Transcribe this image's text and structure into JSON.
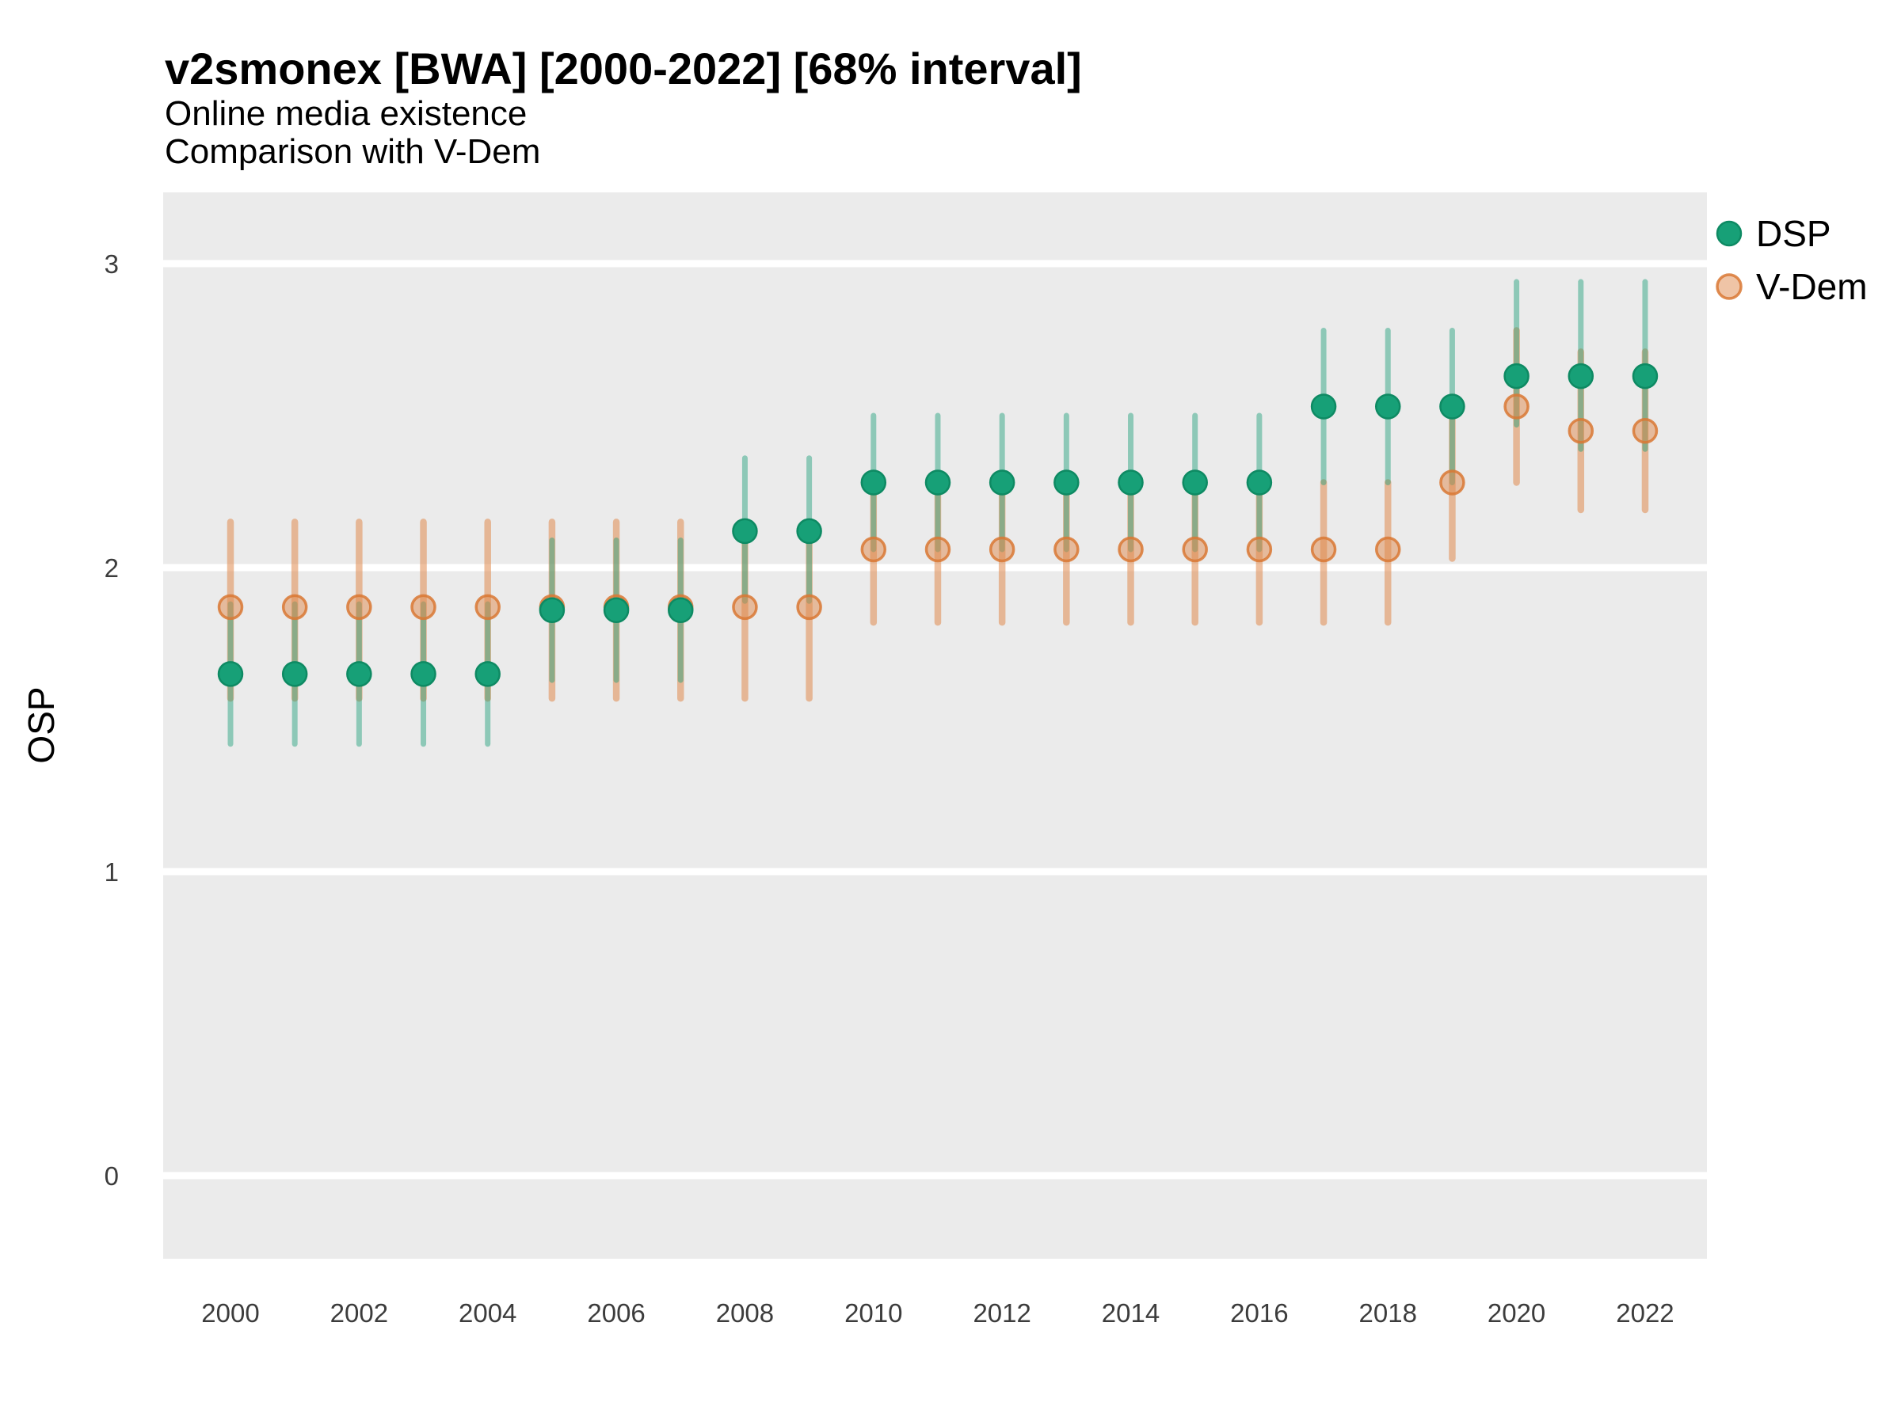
{
  "title": "v2smonex [BWA] [2000-2022] [68% interval]",
  "subtitle1": "Online media existence",
  "subtitle2": "Comparison with V-Dem",
  "legend": {
    "items": [
      {
        "label": "DSP"
      },
      {
        "label": "V-Dem"
      }
    ]
  },
  "colors": {
    "panel_background": "#EBEBEB",
    "gridline": "#FFFFFF",
    "dsp_point_fill": "#17A077",
    "dsp_point_stroke": "#0E8A63",
    "dsp_bar": "rgba(27,158,119,0.45)",
    "vdem_point_fill": "rgba(224,138,78,0.5)",
    "vdem_point_stroke": "rgba(217,120,52,0.85)",
    "vdem_bar": "rgba(224,138,78,0.55)",
    "tick_label": "#3c3c3c",
    "text": "#000000"
  },
  "chart_data": {
    "type": "scatter",
    "title": "v2smonex [BWA] [2000-2022] [68% interval]",
    "subtitle": [
      "Online media existence",
      "Comparison with V-Dem"
    ],
    "xlabel": "",
    "ylabel": "OSP",
    "interval": "68%",
    "grid": "horizontal-major-only",
    "legend_position": "right-top",
    "x": [
      2000,
      2001,
      2002,
      2003,
      2004,
      2005,
      2006,
      2007,
      2008,
      2009,
      2010,
      2011,
      2012,
      2013,
      2014,
      2015,
      2016,
      2017,
      2018,
      2019,
      2020,
      2021,
      2022
    ],
    "x_ticks": [
      2000,
      2002,
      2004,
      2006,
      2008,
      2010,
      2012,
      2014,
      2016,
      2018,
      2020,
      2022
    ],
    "y_ticks": [
      0,
      1,
      2,
      3
    ],
    "ylim": [
      -0.27,
      3.23
    ],
    "series": [
      {
        "name": "V-Dem",
        "color": "#E08A4E",
        "values": [
          1.87,
          1.87,
          1.87,
          1.87,
          1.87,
          1.87,
          1.87,
          1.87,
          1.87,
          1.87,
          2.06,
          2.06,
          2.06,
          2.06,
          2.06,
          2.06,
          2.06,
          2.06,
          2.06,
          2.28,
          2.53,
          2.45,
          2.45
        ],
        "lower": [
          1.57,
          1.57,
          1.57,
          1.57,
          1.57,
          1.57,
          1.57,
          1.57,
          1.57,
          1.57,
          1.82,
          1.82,
          1.82,
          1.82,
          1.82,
          1.82,
          1.82,
          1.82,
          1.82,
          2.03,
          2.28,
          2.19,
          2.19
        ],
        "upper": [
          2.15,
          2.15,
          2.15,
          2.15,
          2.15,
          2.15,
          2.15,
          2.15,
          2.15,
          2.15,
          2.28,
          2.28,
          2.28,
          2.28,
          2.28,
          2.28,
          2.28,
          2.28,
          2.28,
          2.53,
          2.78,
          2.71,
          2.71
        ]
      },
      {
        "name": "DSP",
        "color": "#17A077",
        "values": [
          1.65,
          1.65,
          1.65,
          1.65,
          1.65,
          1.86,
          1.86,
          1.86,
          2.12,
          2.12,
          2.28,
          2.28,
          2.28,
          2.28,
          2.28,
          2.28,
          2.28,
          2.53,
          2.53,
          2.53,
          2.63,
          2.63,
          2.63
        ],
        "lower": [
          1.42,
          1.42,
          1.42,
          1.42,
          1.42,
          1.63,
          1.63,
          1.63,
          1.89,
          1.89,
          2.06,
          2.06,
          2.06,
          2.06,
          2.06,
          2.06,
          2.06,
          2.28,
          2.28,
          2.28,
          2.47,
          2.39,
          2.39
        ],
        "upper": [
          1.88,
          1.88,
          1.88,
          1.88,
          1.88,
          2.09,
          2.09,
          2.09,
          2.36,
          2.36,
          2.5,
          2.5,
          2.5,
          2.5,
          2.5,
          2.5,
          2.5,
          2.78,
          2.78,
          2.78,
          2.94,
          2.94,
          2.94
        ]
      }
    ]
  }
}
